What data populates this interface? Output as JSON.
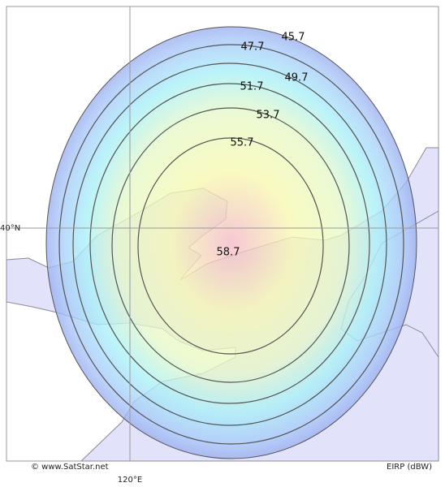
{
  "map": {
    "contour_labels": [
      "45.7",
      "47.7",
      "49.7",
      "51.7",
      "53.7",
      "55.7",
      "58.7"
    ],
    "grid_labels": {
      "latitude": "40°N",
      "longitude": "120°E"
    },
    "credit": "© www.SatStar.net",
    "unit_label": "EIRP (dBW)"
  }
}
